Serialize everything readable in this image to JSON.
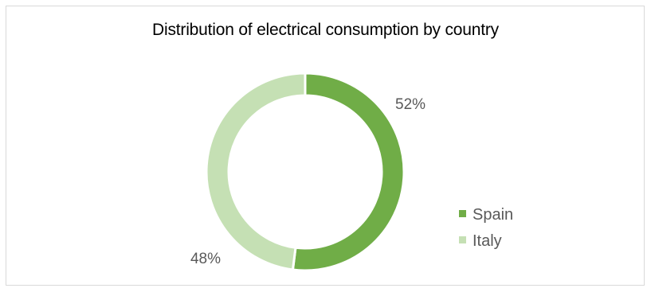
{
  "chart_data": {
    "type": "pie",
    "variant": "donut",
    "title": "Distribution of electrical consumption by country",
    "categories": [
      "Spain",
      "Italy"
    ],
    "values": [
      52,
      48
    ],
    "labels": [
      "52%",
      "48%"
    ],
    "colors": [
      "#70ad47",
      "#c5e0b4"
    ],
    "legend_placement": "right"
  }
}
